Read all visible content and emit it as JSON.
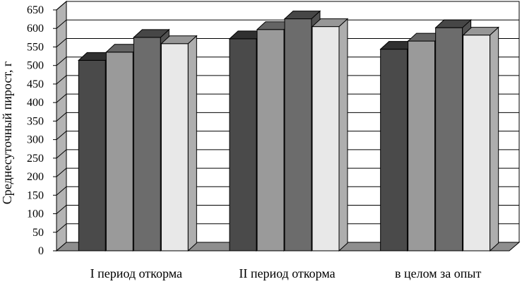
{
  "chart_data": {
    "type": "bar",
    "style": "3d-clustered-column",
    "title": "",
    "xlabel": "",
    "ylabel": "Среднесуточный пирост, г",
    "ylim": [
      0,
      650
    ],
    "yticks": [
      0,
      50,
      100,
      150,
      200,
      250,
      300,
      350,
      400,
      450,
      500,
      550,
      600,
      650
    ],
    "grid": true,
    "legend": "none",
    "categories": [
      "I период откорма",
      "II период откорма",
      "в целом за опыт"
    ],
    "series": [
      {
        "values": [
          514,
          572,
          544
        ],
        "color": "#4a4a4a"
      },
      {
        "values": [
          536,
          597,
          566
        ],
        "color": "#9a9a9a"
      },
      {
        "values": [
          576,
          626,
          602
        ],
        "color": "#6c6c6c"
      },
      {
        "values": [
          559,
          605,
          582
        ],
        "color": "#e8e8e8"
      }
    ]
  }
}
